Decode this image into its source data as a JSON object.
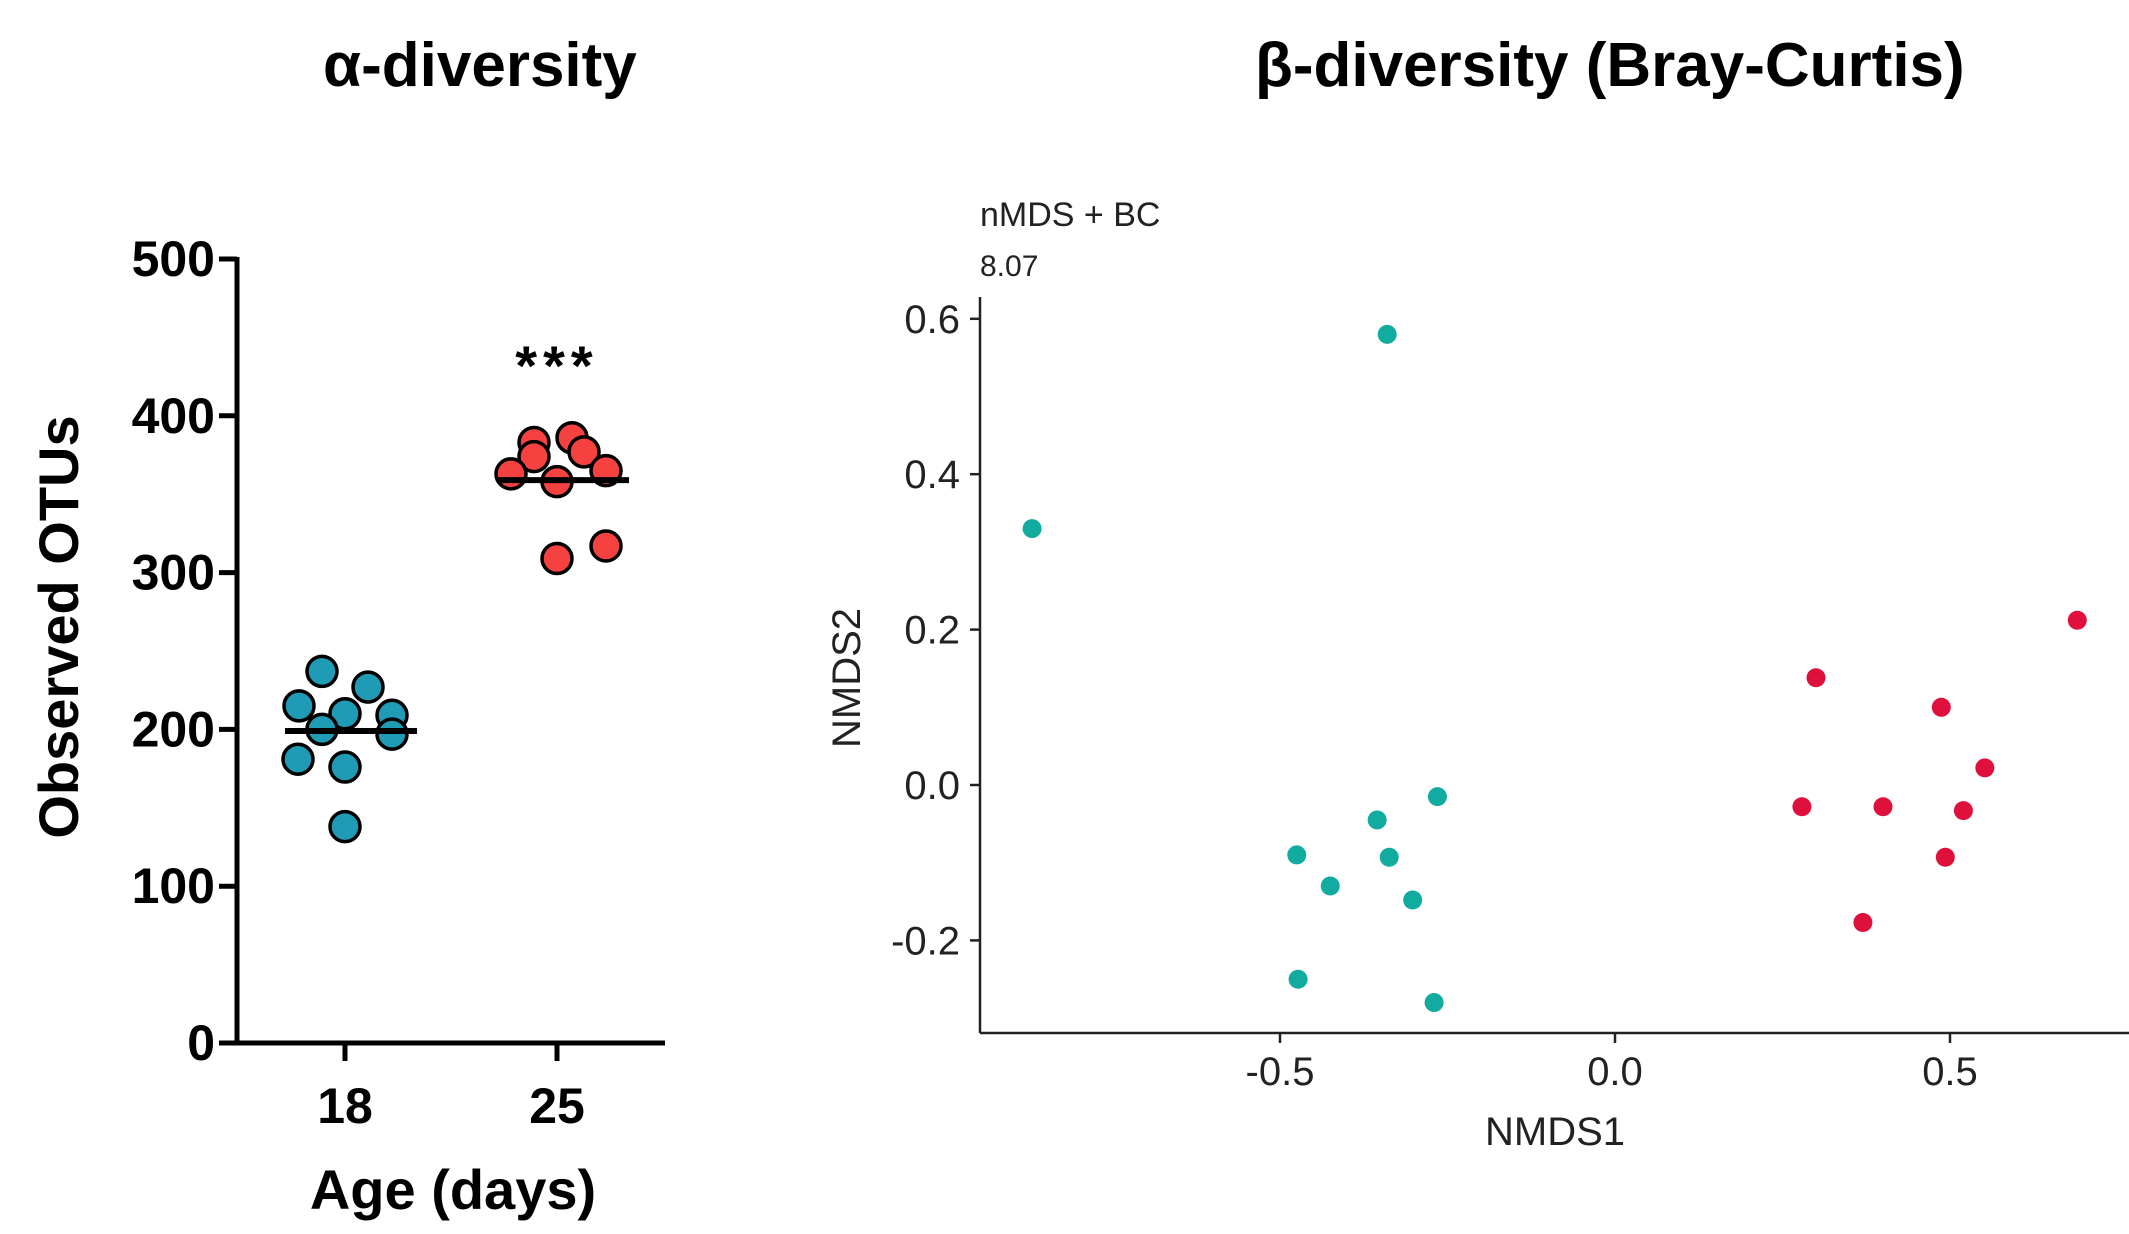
{
  "titles": {
    "alpha": "α-diversity",
    "beta": "β-diversity (Bray-Curtis)"
  },
  "chart_data": [
    {
      "type": "scatter",
      "title": "α-diversity",
      "xlabel": "Age (days)",
      "ylabel": "Observed OTUs",
      "categories": [
        "18",
        "25"
      ],
      "ylim": [
        0,
        500
      ],
      "yticks": [
        0,
        100,
        200,
        300,
        400,
        500
      ],
      "annotation": "***",
      "colors": {
        "18": "#1f9bb5",
        "25": "#f5413f"
      },
      "series": [
        {
          "category": "18",
          "values": [
            237,
            227,
            215,
            210,
            209,
            200,
            197,
            181,
            176,
            138
          ],
          "mean": 199
        },
        {
          "category": "25",
          "values": [
            386,
            383,
            377,
            374,
            365,
            363,
            358,
            317,
            309
          ],
          "mean": 359
        }
      ]
    },
    {
      "type": "scatter",
      "subtitle": "nMDS + BC",
      "stress": "8.07",
      "xlabel": "NMDS1",
      "ylabel": "NMDS2",
      "xlim": [
        -0.95,
        0.75
      ],
      "ylim": [
        -0.32,
        0.62
      ],
      "xticks": [
        "-0.5",
        "0.0",
        "0.5"
      ],
      "yticks": [
        "-0.2",
        "0.0",
        "0.2",
        "0.4",
        "0.6"
      ],
      "grid": false,
      "colors": [
        "#12ab9f",
        "#e0103c"
      ],
      "series": [
        {
          "color": "#12ab9f",
          "points": [
            [
              -0.34,
              0.58
            ],
            [
              -0.87,
              0.33
            ],
            [
              -0.265,
              -0.015
            ],
            [
              -0.355,
              -0.045
            ],
            [
              -0.475,
              -0.09
            ],
            [
              -0.337,
              -0.093
            ],
            [
              -0.425,
              -0.13
            ],
            [
              -0.302,
              -0.148
            ],
            [
              -0.473,
              -0.25
            ],
            [
              -0.27,
              -0.28
            ]
          ]
        },
        {
          "color": "#e0103c",
          "points": [
            [
              0.69,
              0.212
            ],
            [
              0.3,
              0.138
            ],
            [
              0.487,
              0.1
            ],
            [
              0.552,
              0.022
            ],
            [
              0.279,
              -0.028
            ],
            [
              0.4,
              -0.028
            ],
            [
              0.52,
              -0.033
            ],
            [
              0.493,
              -0.093
            ],
            [
              0.37,
              -0.177
            ]
          ]
        }
      ]
    }
  ]
}
